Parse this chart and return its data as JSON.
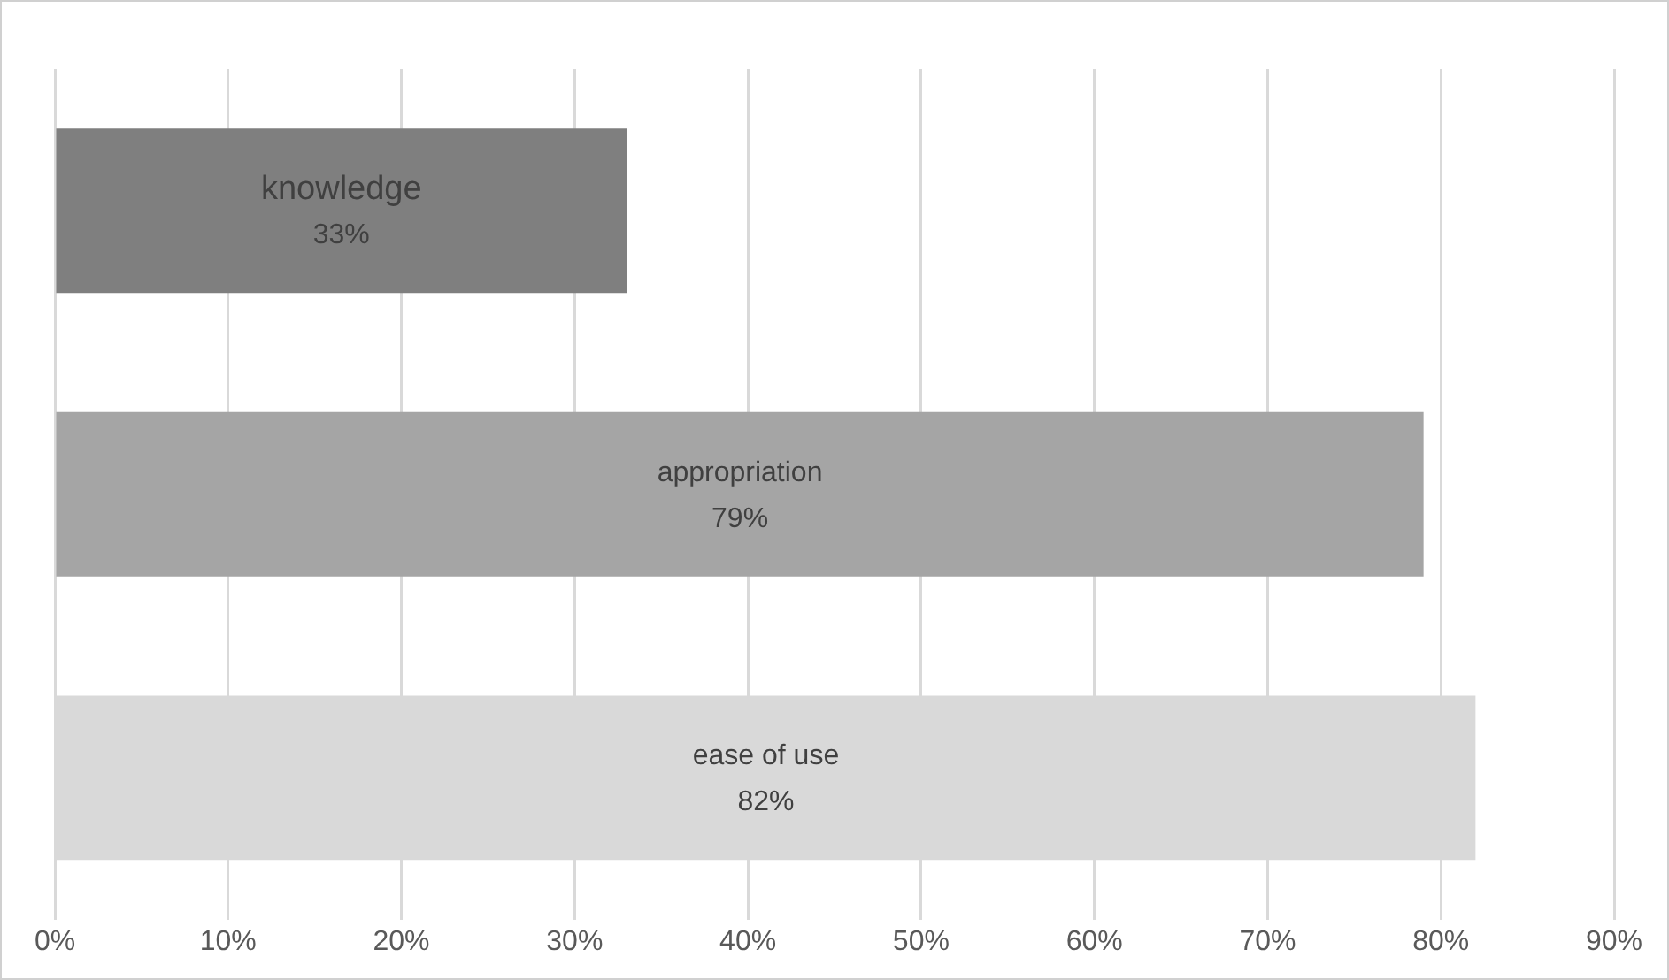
{
  "chart_data": {
    "type": "bar",
    "orientation": "horizontal",
    "categories": [
      "knowledge",
      "appropriation",
      "ease of use"
    ],
    "values": [
      33,
      79,
      82
    ],
    "colors": [
      "#7f7f7f",
      "#a5a5a5",
      "#d9d9d9"
    ],
    "xlim": [
      0,
      90
    ],
    "xticks": [
      {
        "value": 0,
        "label": "0%"
      },
      {
        "value": 10,
        "label": "10%"
      },
      {
        "value": 20,
        "label": "20%"
      },
      {
        "value": 30,
        "label": "30%"
      },
      {
        "value": 40,
        "label": "40%"
      },
      {
        "value": 50,
        "label": "50%"
      },
      {
        "value": 60,
        "label": "60%"
      },
      {
        "value": 70,
        "label": "70%"
      },
      {
        "value": 80,
        "label": "80%"
      },
      {
        "value": 90,
        "label": "90%"
      }
    ],
    "value_labels": [
      "33%",
      "79%",
      "82%"
    ],
    "grid": "x",
    "tick_labels": "x",
    "legend": false
  }
}
